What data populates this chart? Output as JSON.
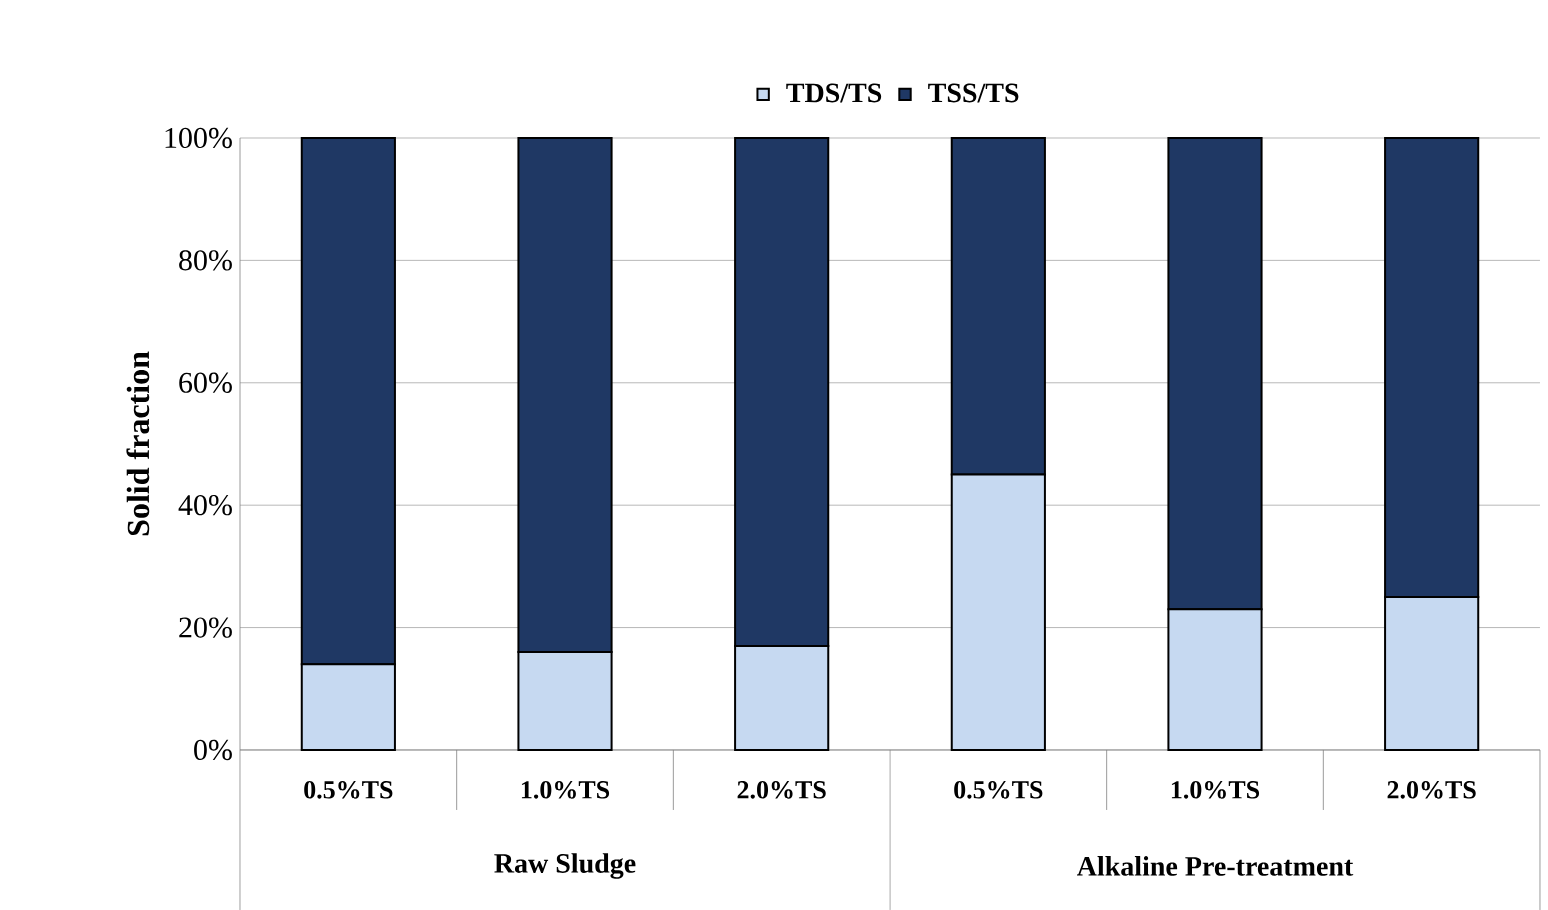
{
  "chart_data": {
    "type": "bar",
    "stacked": true,
    "ylabel": "Solid fraction",
    "categories": [
      "0.5%TS",
      "1.0%TS",
      "2.0%TS",
      "0.5%TS",
      "1.0%TS",
      "2.0%TS"
    ],
    "series": [
      {
        "name": "TDS/TS",
        "color": "#c6d9f1",
        "values": [
          14,
          16,
          17,
          45,
          23,
          25
        ]
      },
      {
        "name": "TSS/TS",
        "color": "#1f3864",
        "values": [
          86,
          84,
          83,
          55,
          77,
          75
        ]
      }
    ],
    "ylim": [
      0,
      100
    ],
    "yticks": [
      {
        "value": 0,
        "label": "0%"
      },
      {
        "value": 20,
        "label": "20%"
      },
      {
        "value": 40,
        "label": "40%"
      },
      {
        "value": 60,
        "label": "60%"
      },
      {
        "value": 80,
        "label": "80%"
      },
      {
        "value": 100,
        "label": "100%"
      }
    ],
    "grid": "y",
    "legend": "top",
    "annotations": [
      "Raw Sludge",
      "Alkaline Pre-treatment"
    ]
  }
}
